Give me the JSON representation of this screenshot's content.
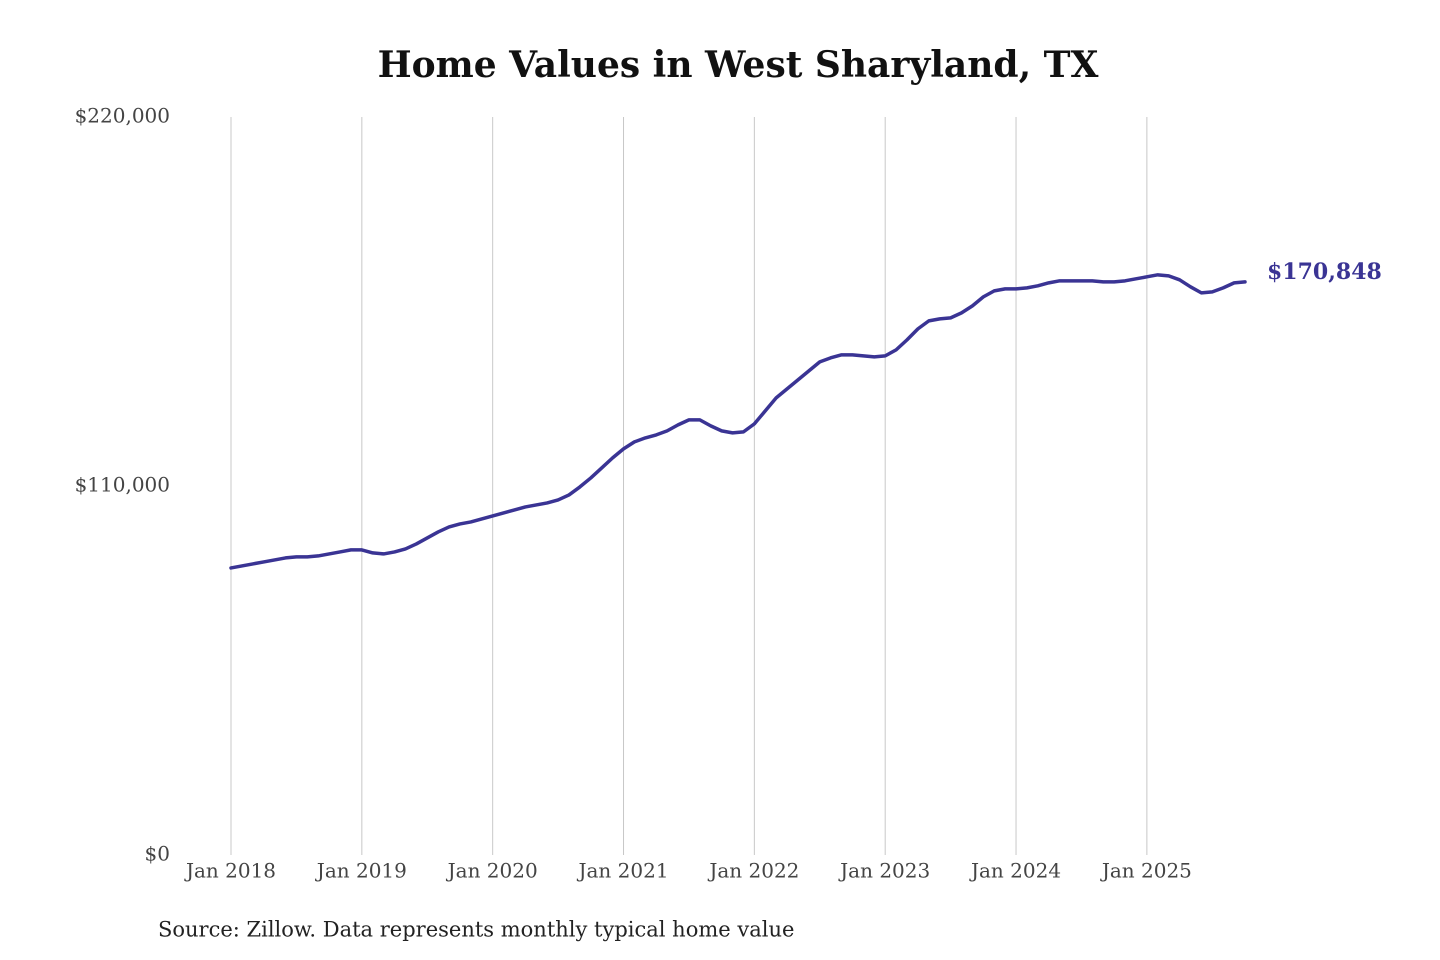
{
  "chart_data": {
    "type": "line",
    "title": "Home Values in West Sharyland, TX",
    "source": "Source: Zillow. Data represents monthly typical home value",
    "x": [
      "2018-01",
      "2018-02",
      "2018-03",
      "2018-04",
      "2018-05",
      "2018-06",
      "2018-07",
      "2018-08",
      "2018-09",
      "2018-10",
      "2018-11",
      "2018-12",
      "2019-01",
      "2019-02",
      "2019-03",
      "2019-04",
      "2019-05",
      "2019-06",
      "2019-07",
      "2019-08",
      "2019-09",
      "2019-10",
      "2019-11",
      "2019-12",
      "2020-01",
      "2020-02",
      "2020-03",
      "2020-04",
      "2020-05",
      "2020-06",
      "2020-07",
      "2020-08",
      "2020-09",
      "2020-10",
      "2020-11",
      "2020-12",
      "2021-01",
      "2021-02",
      "2021-03",
      "2021-04",
      "2021-05",
      "2021-06",
      "2021-07",
      "2021-08",
      "2021-09",
      "2021-10",
      "2021-11",
      "2021-12",
      "2022-01",
      "2022-02",
      "2022-03",
      "2022-04",
      "2022-05",
      "2022-06",
      "2022-07",
      "2022-08",
      "2022-09",
      "2022-10",
      "2022-11",
      "2022-12",
      "2023-01",
      "2023-02",
      "2023-03",
      "2023-04",
      "2023-05",
      "2023-06",
      "2023-07",
      "2023-08",
      "2023-09",
      "2023-10",
      "2023-11",
      "2023-12",
      "2024-01",
      "2024-02",
      "2024-03",
      "2024-04",
      "2024-05",
      "2024-06",
      "2024-07",
      "2024-08",
      "2024-09",
      "2024-10",
      "2024-11",
      "2024-12",
      "2025-01",
      "2025-02",
      "2025-03",
      "2025-04",
      "2025-05",
      "2025-06",
      "2025-07",
      "2025-08",
      "2025-09",
      "2025-10"
    ],
    "series": [
      {
        "name": "Home value",
        "color": "#3a3494",
        "values": [
          85580,
          86170,
          86770,
          87370,
          87960,
          88560,
          88860,
          88860,
          89160,
          89750,
          90350,
          90950,
          90950,
          90050,
          89750,
          90350,
          91240,
          92730,
          94520,
          96310,
          97800,
          98700,
          99290,
          100190,
          101080,
          101980,
          102870,
          103760,
          104360,
          104960,
          105850,
          107340,
          109730,
          112410,
          115390,
          118380,
          121060,
          123150,
          124340,
          125240,
          126430,
          128220,
          129710,
          129710,
          127920,
          126430,
          125840,
          126130,
          128520,
          132390,
          136270,
          138950,
          141640,
          144320,
          147000,
          148200,
          149090,
          149090,
          148790,
          148490,
          148790,
          150580,
          153560,
          156840,
          159230,
          159820,
          160120,
          161610,
          163700,
          166380,
          168170,
          168770,
          168770,
          169070,
          169670,
          170560,
          171160,
          171160,
          171160,
          171160,
          170860,
          170860,
          171160,
          171760,
          172350,
          172950,
          172650,
          171460,
          169370,
          167580,
          167880,
          169070,
          170560,
          170848
        ],
        "value_labels": [
          null,
          null,
          null,
          null,
          null,
          null,
          null,
          null,
          null,
          null,
          null,
          null,
          null,
          null,
          null,
          null,
          null,
          null,
          null,
          null,
          null,
          null,
          null,
          null,
          null,
          null,
          null,
          null,
          null,
          null,
          null,
          null,
          null,
          null,
          null,
          null,
          null,
          null,
          null,
          null,
          null,
          null,
          null,
          null,
          null,
          null,
          null,
          null,
          null,
          null,
          null,
          null,
          null,
          null,
          null,
          null,
          null,
          null,
          null,
          null,
          null,
          null,
          null,
          null,
          null,
          null,
          null,
          null,
          null,
          null,
          null,
          null,
          null,
          null,
          null,
          null,
          null,
          null,
          null,
          null,
          null,
          null,
          null,
          null,
          null,
          null,
          null,
          null,
          null,
          null,
          null,
          null,
          null,
          "$170,848"
        ]
      }
    ],
    "xlim": [
      "2018-01",
      "2025-10"
    ],
    "xticks": [
      {
        "value": "2018-01",
        "label": "Jan 2018"
      },
      {
        "value": "2019-01",
        "label": "Jan 2019"
      },
      {
        "value": "2020-01",
        "label": "Jan 2020"
      },
      {
        "value": "2021-01",
        "label": "Jan 2021"
      },
      {
        "value": "2022-01",
        "label": "Jan 2022"
      },
      {
        "value": "2023-01",
        "label": "Jan 2023"
      },
      {
        "value": "2024-01",
        "label": "Jan 2024"
      },
      {
        "value": "2025-01",
        "label": "Jan 2025"
      }
    ],
    "ylim": [
      0,
      220000
    ],
    "yticks": [
      {
        "value": 0,
        "label": "$0"
      },
      {
        "value": 110000,
        "label": "$110,000"
      },
      {
        "value": 220000,
        "label": "$220,000"
      }
    ],
    "grid": "x"
  }
}
